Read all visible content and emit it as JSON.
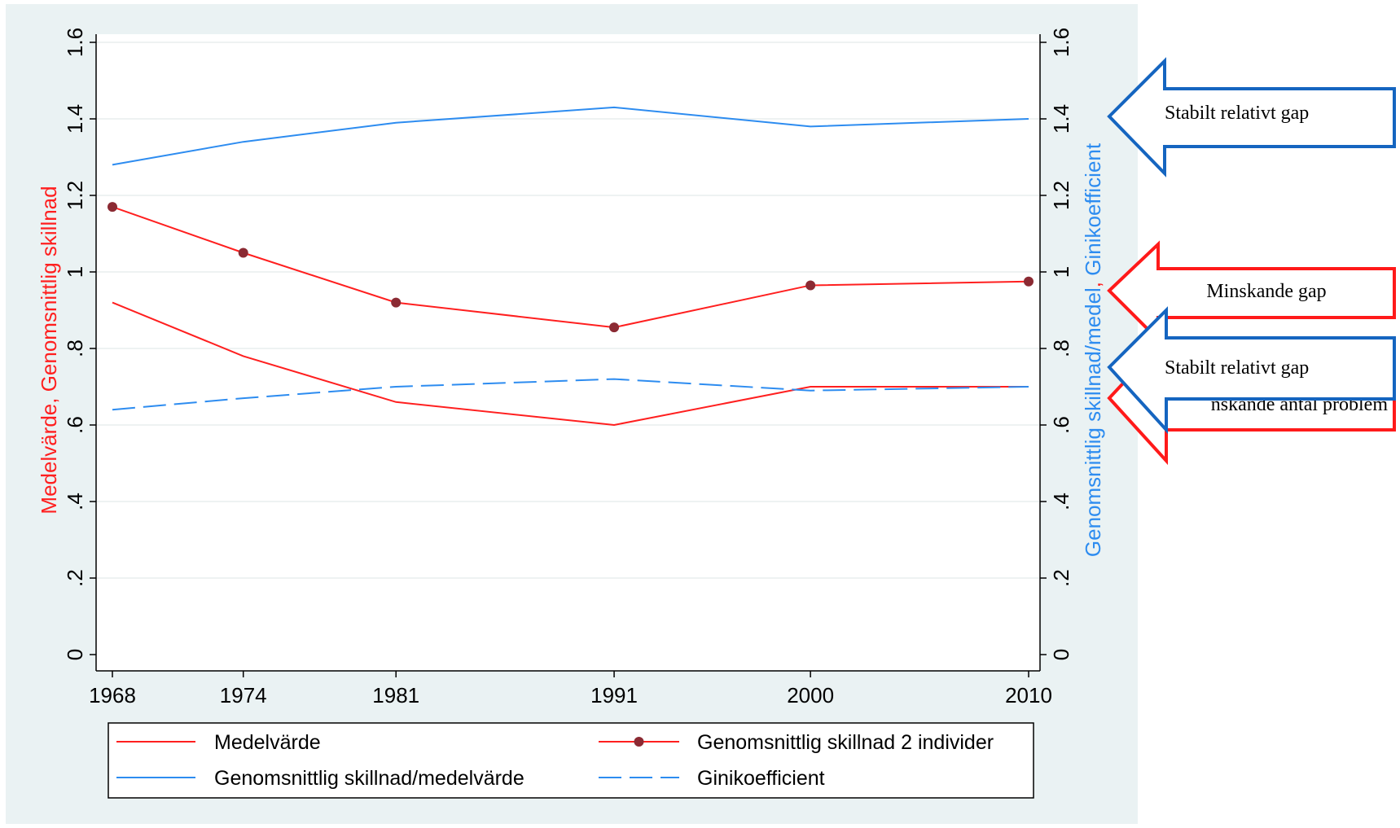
{
  "chart_data": {
    "type": "line",
    "x": [
      1968,
      1974,
      1981,
      1991,
      2000,
      2010
    ],
    "xticks": [
      "1968",
      "1974",
      "1981",
      "1991",
      "2000",
      "2010"
    ],
    "yticks": [
      "0",
      ".2",
      ".4",
      ".6",
      ".8",
      "1",
      "1.2",
      "1.4",
      "1.6"
    ],
    "ylim": [
      0,
      1.6
    ],
    "y2lim": [
      0,
      1.6
    ],
    "ylabel": "Medelvärde, Genomsnittlig skillnad",
    "y2label_part1": "Genomsnittlig skillnad/medel",
    "y2label_sep": ", ",
    "y2label_part2": "Ginikoefficient",
    "grid": true,
    "legend_position": "bottom",
    "series": [
      {
        "name": "Medelvärde",
        "axis": "left",
        "color": "#ff1f1f",
        "style": "solid",
        "marker": false,
        "values": [
          0.92,
          0.78,
          0.66,
          0.6,
          0.7,
          0.7
        ]
      },
      {
        "name": "Genomsnittlig skillnad 2 individer",
        "axis": "left",
        "color": "#ff1f1f",
        "style": "solid",
        "marker": true,
        "marker_color": "#8b2a33",
        "values": [
          1.17,
          1.05,
          0.92,
          0.855,
          0.965,
          0.975
        ]
      },
      {
        "name": "Genomsnittlig skillnad/medelvärde",
        "axis": "right",
        "color": "#2d8cf0",
        "style": "solid",
        "marker": false,
        "values": [
          1.28,
          1.34,
          1.39,
          1.43,
          1.38,
          1.4
        ]
      },
      {
        "name": "Ginikoefficient",
        "axis": "right",
        "color": "#2d8cf0",
        "style": "dashed",
        "marker": false,
        "values": [
          0.64,
          0.67,
          0.7,
          0.72,
          0.69,
          0.7
        ]
      }
    ],
    "annotations": [
      {
        "text": "Stabilt relativt gap",
        "color": "#1565c0",
        "points_at": 1.42
      },
      {
        "text": "Minskande gap",
        "color": "#ff1a1a",
        "points_at": 0.95
      },
      {
        "text": "nskande antal problem",
        "color": "#ff1a1a",
        "points_at": 0.68
      },
      {
        "text": "Stabilt relativt gap",
        "color": "#1565c0",
        "points_at": 0.75
      }
    ]
  },
  "colors": {
    "plot_region_bg": "#eaf2f3",
    "left_axis_title": "#ff1f1f",
    "right_axis_title": "#2d8cf0"
  }
}
